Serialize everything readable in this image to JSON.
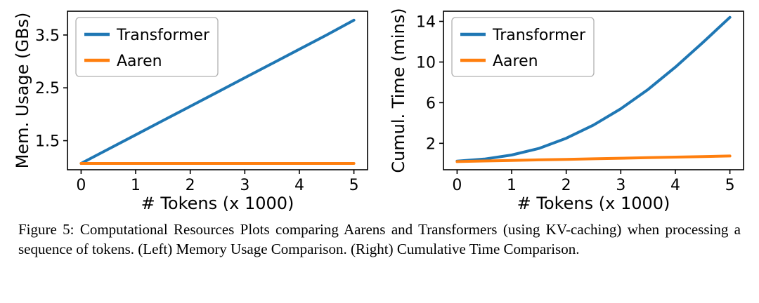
{
  "figure": {
    "caption": "Figure 5: Computational Resources Plots comparing Aarens and Transformers (using KV-caching) when processing a sequence of tokens. (Left) Memory Usage Comparison. (Right) Cumulative Time Comparison."
  },
  "colors": {
    "transformer": "#1f77b4",
    "aaren": "#ff7f0e",
    "legend_border": "#b0b0b0",
    "axis": "#000000"
  },
  "chart_data": [
    {
      "type": "line",
      "name": "memory-usage",
      "title": "",
      "xlabel": "# Tokens (x 1000)",
      "ylabel": "Mem. Usage (GBs)",
      "xlim": [
        -0.25,
        5.25
      ],
      "ylim": [
        0.95,
        3.95
      ],
      "xticks": [
        0,
        1,
        2,
        3,
        4,
        5
      ],
      "xtick_labels": [
        "0",
        "1",
        "2",
        "3",
        "4",
        "5"
      ],
      "yticks": [
        1.5,
        2.5,
        3.5
      ],
      "ytick_labels": [
        "1.5",
        "2.5",
        "3.5"
      ],
      "grid": false,
      "legend_position": "upper left",
      "x": [
        0,
        0.5,
        1,
        1.5,
        2,
        2.5,
        3,
        3.5,
        4,
        4.5,
        5
      ],
      "series": [
        {
          "name": "Transformer",
          "color": "#1f77b4",
          "values": [
            1.07,
            1.34,
            1.61,
            1.88,
            2.15,
            2.42,
            2.69,
            2.96,
            3.23,
            3.5,
            3.78
          ]
        },
        {
          "name": "Aaren",
          "color": "#ff7f0e",
          "values": [
            1.07,
            1.07,
            1.07,
            1.07,
            1.07,
            1.07,
            1.07,
            1.07,
            1.07,
            1.07,
            1.07
          ]
        }
      ]
    },
    {
      "type": "line",
      "name": "cumulative-time",
      "title": "",
      "xlabel": "# Tokens (x 1000)",
      "ylabel": "Cumul. Time (mins)",
      "xlim": [
        -0.25,
        5.25
      ],
      "ylim": [
        -0.6,
        15.0
      ],
      "xticks": [
        0,
        1,
        2,
        3,
        4,
        5
      ],
      "xtick_labels": [
        "0",
        "1",
        "2",
        "3",
        "4",
        "5"
      ],
      "yticks": [
        2,
        6,
        10,
        14
      ],
      "ytick_labels": [
        "2",
        "6",
        "10",
        "14"
      ],
      "grid": false,
      "legend_position": "upper left",
      "x": [
        0,
        0.5,
        1,
        1.5,
        2,
        2.5,
        3,
        3.5,
        4,
        4.5,
        5
      ],
      "series": [
        {
          "name": "Transformer",
          "color": "#1f77b4",
          "values": [
            0.25,
            0.45,
            0.85,
            1.5,
            2.5,
            3.8,
            5.4,
            7.3,
            9.5,
            11.9,
            14.4
          ]
        },
        {
          "name": "Aaren",
          "color": "#ff7f0e",
          "values": [
            0.2,
            0.26,
            0.31,
            0.37,
            0.42,
            0.48,
            0.53,
            0.59,
            0.64,
            0.7,
            0.75
          ]
        }
      ]
    }
  ]
}
